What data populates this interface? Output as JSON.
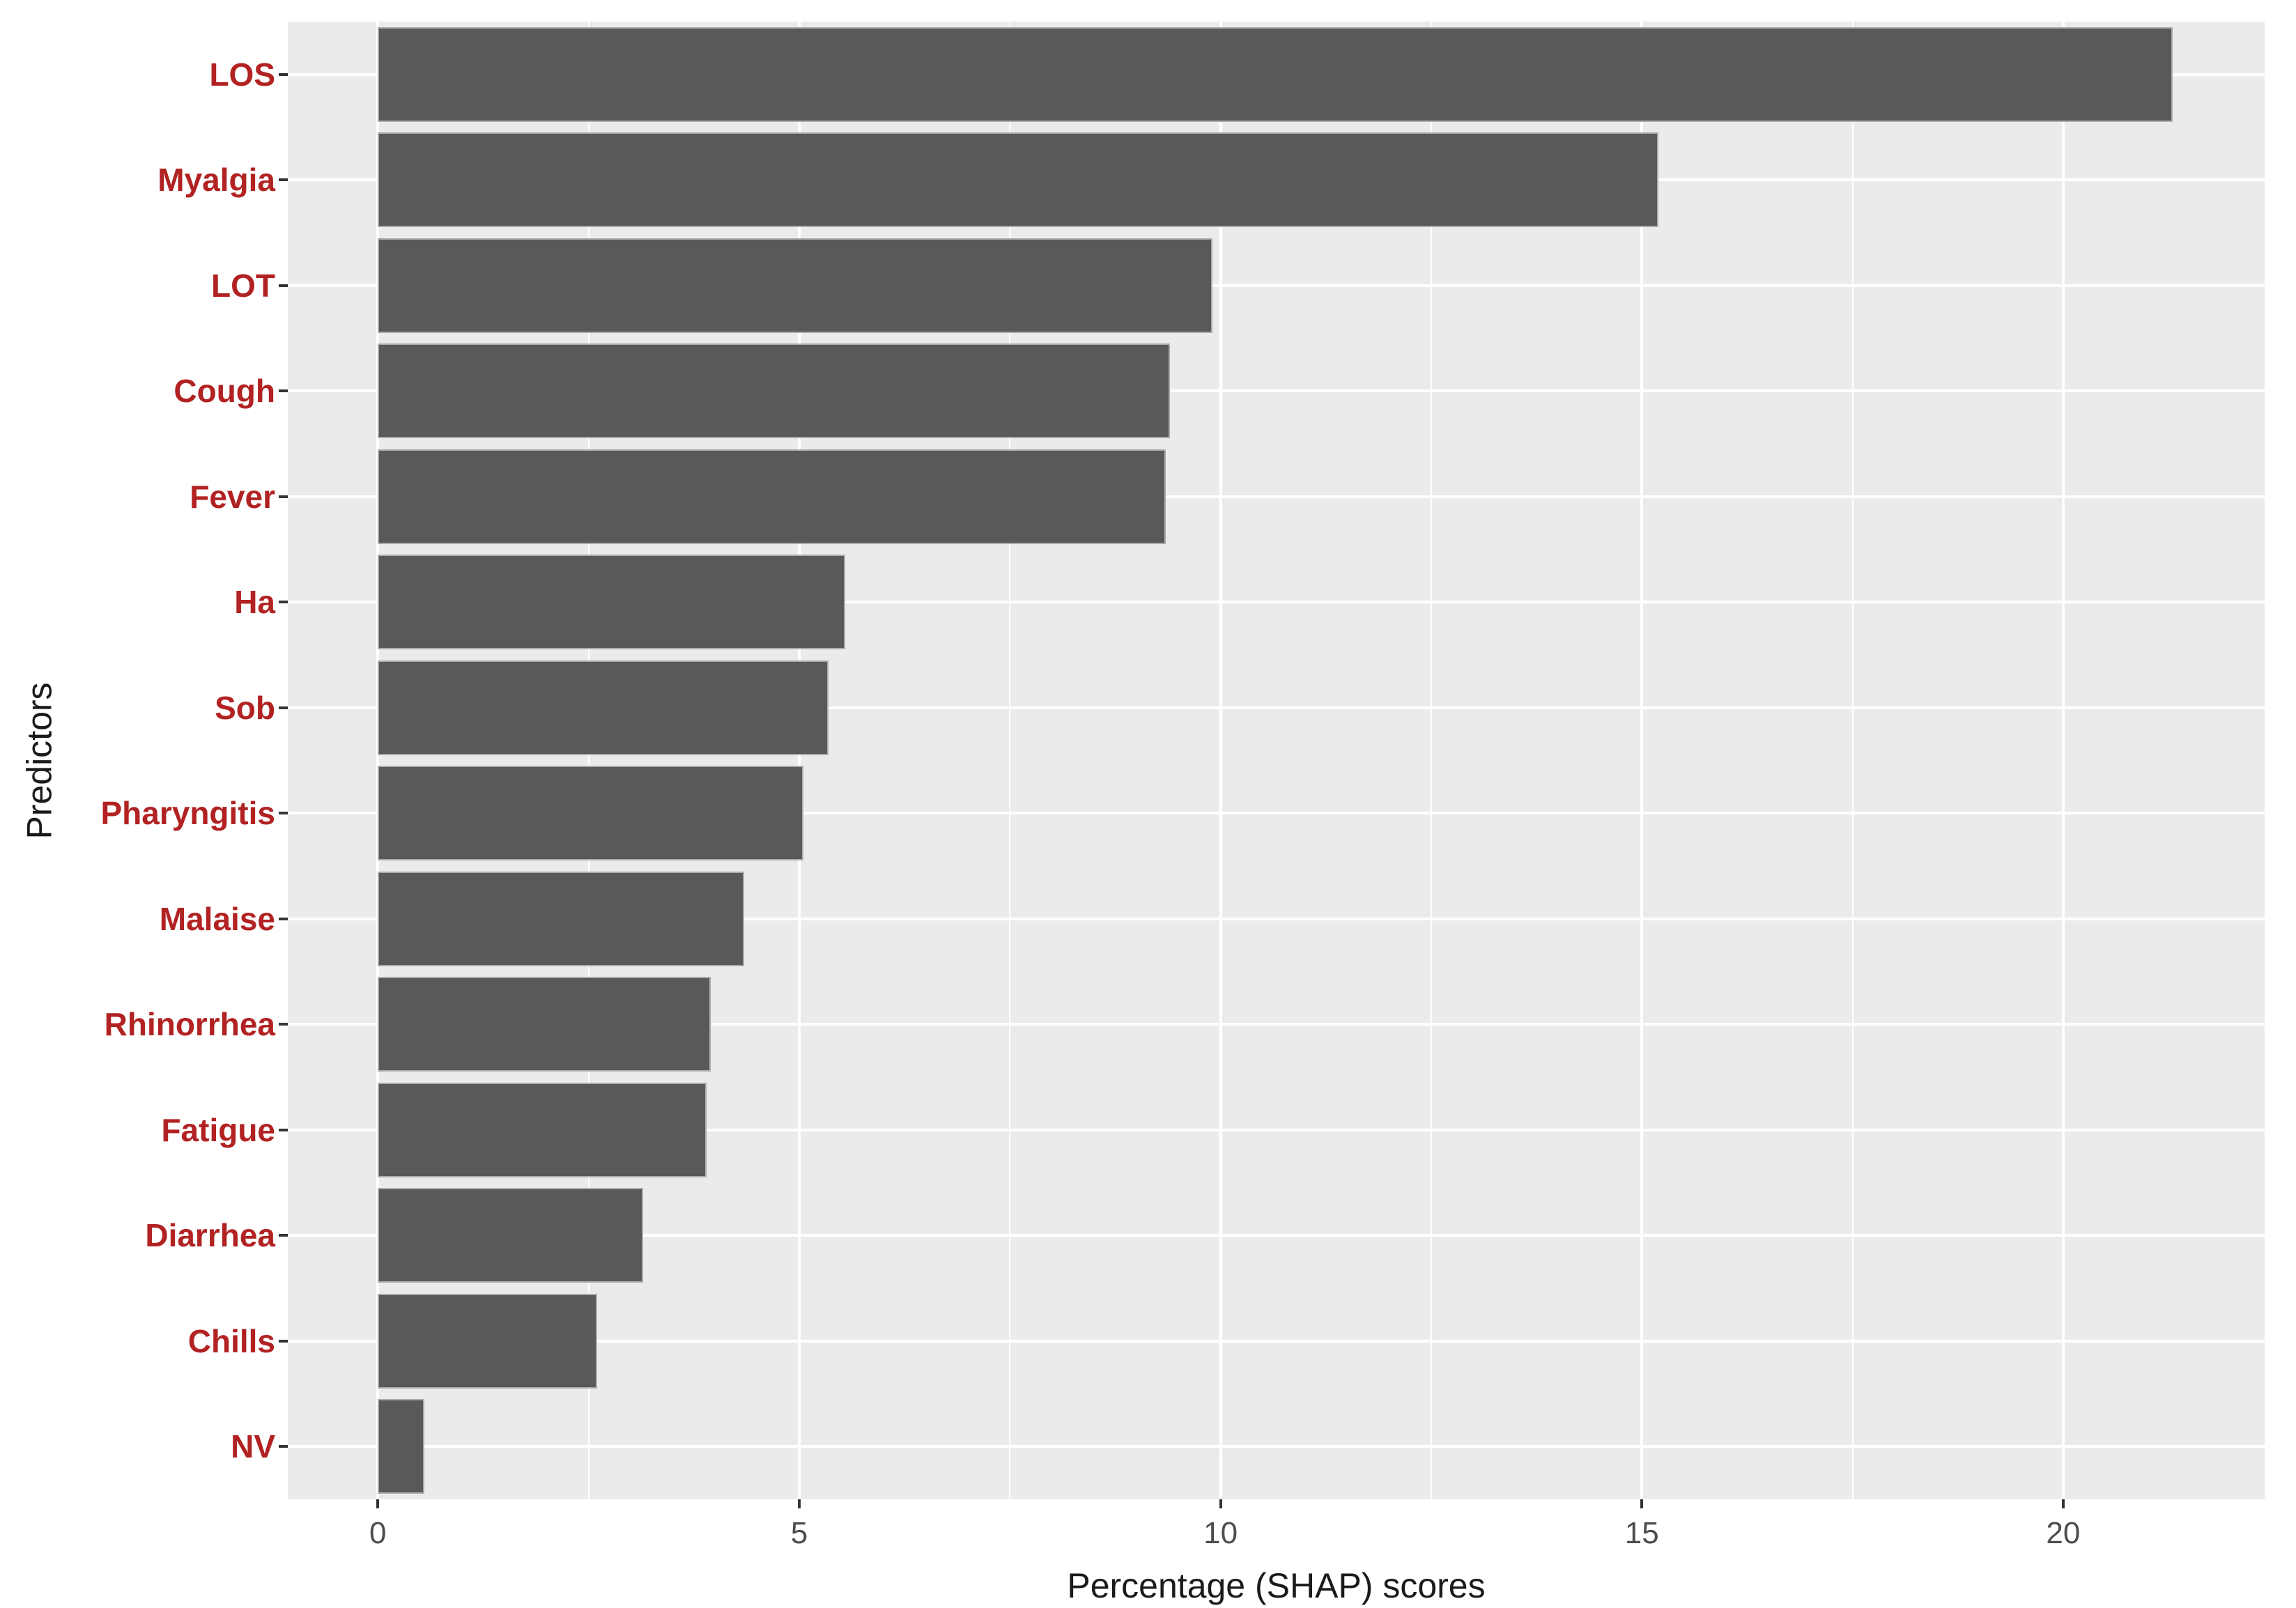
{
  "figure": {
    "background_color": "#FFFFFF"
  },
  "chart_data": {
    "type": "bar",
    "orientation": "horizontal",
    "title": "",
    "xlabel": "Percentage (SHAP) scores",
    "ylabel": "Predictors",
    "categories": [
      "LOS",
      "Myalgia",
      "LOT",
      "Cough",
      "Fever",
      "Ha",
      "Sob",
      "Pharyngitis",
      "Malaise",
      "Rhinorrhea",
      "Fatigue",
      "Diarrhea",
      "Chills",
      "NV"
    ],
    "values": [
      21.3,
      15.2,
      9.9,
      9.4,
      9.35,
      5.55,
      5.35,
      5.05,
      4.35,
      3.95,
      3.9,
      3.15,
      2.6,
      0.55
    ],
    "x_tick_labels": [
      "0",
      "5",
      "10",
      "15",
      "20"
    ],
    "x_tick_values": [
      0,
      5,
      10,
      15,
      20
    ],
    "x_minor_tick_values": [
      2.5,
      7.5,
      12.5,
      17.5
    ],
    "xlim": [
      -1.07,
      22.39
    ],
    "bar_width_fraction": 0.9,
    "grid": "major-and-minor-vertical-white, major-horizontal-white",
    "legend_position": "none",
    "style": {
      "bar_fill": "#595959",
      "bar_border": "#ACACAC",
      "panel_background": "#EBEBEB",
      "gridline_color": "#FFFFFF",
      "category_label_color": "#B22222",
      "tick_label_color": "#4D4D4D",
      "axis_title_color": "#1A1A1A",
      "tick_mark_color": "#333333"
    }
  }
}
